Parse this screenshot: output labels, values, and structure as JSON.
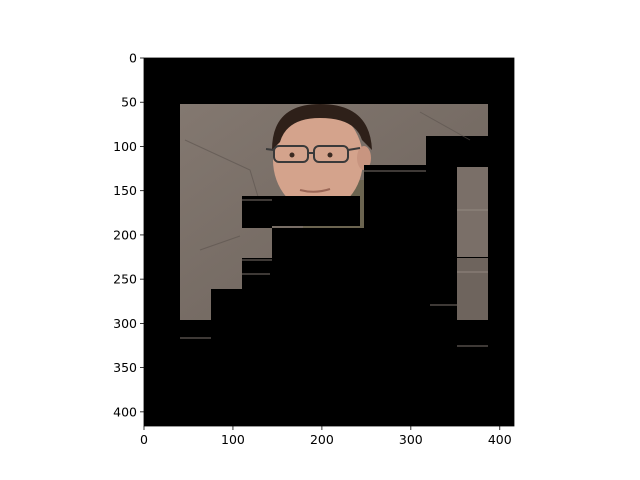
{
  "chart_data": {
    "type": "image",
    "title": "",
    "xlabel": "",
    "ylabel": "",
    "xlim": [
      0,
      416
    ],
    "ylim": [
      416,
      0
    ],
    "x_ticks": [
      "0",
      "100",
      "200",
      "300",
      "400"
    ],
    "x_tick_values": [
      0,
      100,
      200,
      300,
      400
    ],
    "y_ticks": [
      "0",
      "50",
      "100",
      "150",
      "200",
      "250",
      "300",
      "350",
      "400"
    ],
    "y_tick_values": [
      0,
      50,
      100,
      150,
      200,
      250,
      300,
      350,
      400
    ],
    "image": {
      "description_icon": "portrait-photo-icon",
      "background_color": "#000000",
      "photo_colors": {
        "wall": "#7d726b",
        "wall_dark": "#5e5650",
        "skin": "#d4a38c",
        "hair": "#2e2019",
        "shirt": "#6b6450",
        "glasses": "#3a3a3a"
      }
    }
  }
}
